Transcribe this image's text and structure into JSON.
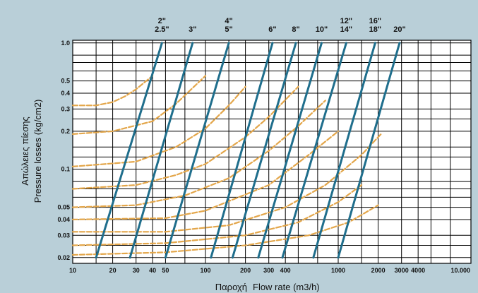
{
  "colors": {
    "background": "#b9cfd8",
    "plot_area": "#ffffff",
    "grid": "#000000",
    "pipe_lines": "#1f6e8c",
    "curves": "#e3a64a"
  },
  "chart_data": {
    "type": "line",
    "x_scale": "log",
    "y_scale": "log",
    "xlim": [
      10,
      10000
    ],
    "ylim": [
      0.018,
      1.05
    ],
    "grid": true,
    "xlabel_gr": "Παροχή",
    "xlabel_en": "Flow rate (m3/h)",
    "ylabel_gr": "Απώλειες πίεσης",
    "ylabel_en": "Pressure losses (kg/cm2)",
    "x_tick_labels": [
      {
        "label": "10",
        "value": 10
      },
      {
        "label": "20",
        "value": 20
      },
      {
        "label": "30",
        "value": 30
      },
      {
        "label": "40",
        "value": 40
      },
      {
        "label": "50",
        "value": 50
      },
      {
        "label": "100",
        "value": 100
      },
      {
        "label": "200",
        "value": 200
      },
      {
        "label": "300",
        "value": 300
      },
      {
        "label": "400",
        "value": 400
      },
      {
        "label": "1000",
        "value": 1000
      },
      {
        "label": "2000",
        "value": 2000
      },
      {
        "label": "3000",
        "value": 3000
      },
      {
        "label": "4000",
        "value": 4000
      },
      {
        "label": "10.000",
        "value": 10000
      }
    ],
    "x_gridlines": [
      10,
      15,
      20,
      30,
      40,
      50,
      70,
      100,
      150,
      200,
      300,
      400,
      500,
      700,
      1000,
      1500,
      2000,
      3000,
      4000,
      5000,
      7000,
      10000
    ],
    "y_tick_labels": [
      {
        "label": "1.0",
        "value": 1.0
      },
      {
        "label": "0.5",
        "value": 0.5
      },
      {
        "label": "0.4",
        "value": 0.4
      },
      {
        "label": "0.3",
        "value": 0.3
      },
      {
        "label": "0.2",
        "value": 0.2
      },
      {
        "label": "0.1",
        "value": 0.1
      },
      {
        "label": "0.05",
        "value": 0.05
      },
      {
        "label": "0.04",
        "value": 0.04
      },
      {
        "label": "0.03",
        "value": 0.03
      },
      {
        "label": "0.02",
        "value": 0.02
      }
    ],
    "y_gridlines": [
      0.02,
      0.025,
      0.03,
      0.04,
      0.05,
      0.06,
      0.07,
      0.08,
      0.1,
      0.125,
      0.15,
      0.2,
      0.25,
      0.3,
      0.4,
      0.5,
      0.6,
      0.7,
      0.8,
      1.0
    ],
    "pipe_sizes": [
      {
        "name": "2\"",
        "q_at_1": 47,
        "q_at_002": 15
      },
      {
        "name": "2.5\"",
        "q_at_1": 47,
        "q_at_002": 15
      },
      {
        "name": "3\"",
        "q_at_1": 80,
        "q_at_002": 27
      },
      {
        "name": "4\"",
        "q_at_1": 150,
        "q_at_002": 50
      },
      {
        "name": "5\"",
        "q_at_1": 150,
        "q_at_002": 50
      },
      {
        "name": "6\"",
        "q_at_1": 320,
        "q_at_002": 110
      },
      {
        "name": "8\"",
        "q_at_1": 480,
        "q_at_002": 160
      },
      {
        "name": "10\"",
        "q_at_1": 750,
        "q_at_002": 250
      },
      {
        "name": "12\"",
        "q_at_1": 1150,
        "q_at_002": 380
      },
      {
        "name": "14\"",
        "q_at_1": 1150,
        "q_at_002": 380
      },
      {
        "name": "16\"",
        "q_at_1": 1900,
        "q_at_002": 650
      },
      {
        "name": "18\"",
        "q_at_1": 1900,
        "q_at_002": 650
      },
      {
        "name": "20\"",
        "q_at_1": 2900,
        "q_at_002": 1000
      }
    ],
    "pipe_lines": [
      {
        "q_at_1": 47,
        "q_at_002": 15
      },
      {
        "q_at_1": 80,
        "q_at_002": 27
      },
      {
        "q_at_1": 150,
        "q_at_002": 50
      },
      {
        "q_at_1": 320,
        "q_at_002": 110
      },
      {
        "q_at_1": 480,
        "q_at_002": 160
      },
      {
        "q_at_1": 750,
        "q_at_002": 250
      },
      {
        "q_at_1": 1150,
        "q_at_002": 380
      },
      {
        "q_at_1": 1900,
        "q_at_002": 650
      },
      {
        "q_at_1": 2900,
        "q_at_002": 1000
      }
    ],
    "curves": [
      {
        "x": [
          10,
          15,
          20,
          25,
          30,
          40
        ],
        "y": [
          0.32,
          0.32,
          0.34,
          0.38,
          0.43,
          0.55
        ]
      },
      {
        "x": [
          10,
          20,
          40,
          60,
          100
        ],
        "y": [
          0.19,
          0.2,
          0.24,
          0.33,
          0.55
        ]
      },
      {
        "x": [
          10,
          30,
          60,
          100,
          150,
          200
        ],
        "y": [
          0.105,
          0.115,
          0.15,
          0.21,
          0.32,
          0.45
        ]
      },
      {
        "x": [
          10,
          30,
          60,
          100,
          200,
          300,
          500
        ],
        "y": [
          0.07,
          0.075,
          0.09,
          0.11,
          0.18,
          0.26,
          0.45
        ]
      },
      {
        "x": [
          10,
          30,
          70,
          150,
          300,
          500,
          800
        ],
        "y": [
          0.05,
          0.052,
          0.062,
          0.085,
          0.14,
          0.22,
          0.35
        ]
      },
      {
        "x": [
          10,
          50,
          100,
          300,
          600,
          1000
        ],
        "y": [
          0.04,
          0.041,
          0.047,
          0.075,
          0.13,
          0.2
        ]
      },
      {
        "x": [
          10,
          50,
          150,
          400,
          800,
          1500,
          2100
        ],
        "y": [
          0.032,
          0.032,
          0.036,
          0.05,
          0.075,
          0.13,
          0.19
        ]
      },
      {
        "x": [
          10,
          50,
          200,
          500,
          1000,
          1500
        ],
        "y": [
          0.025,
          0.026,
          0.03,
          0.038,
          0.055,
          0.075
        ]
      },
      {
        "x": [
          10,
          50,
          200,
          600,
          1200,
          2000
        ],
        "y": [
          0.021,
          0.022,
          0.025,
          0.03,
          0.038,
          0.052
        ]
      }
    ]
  }
}
